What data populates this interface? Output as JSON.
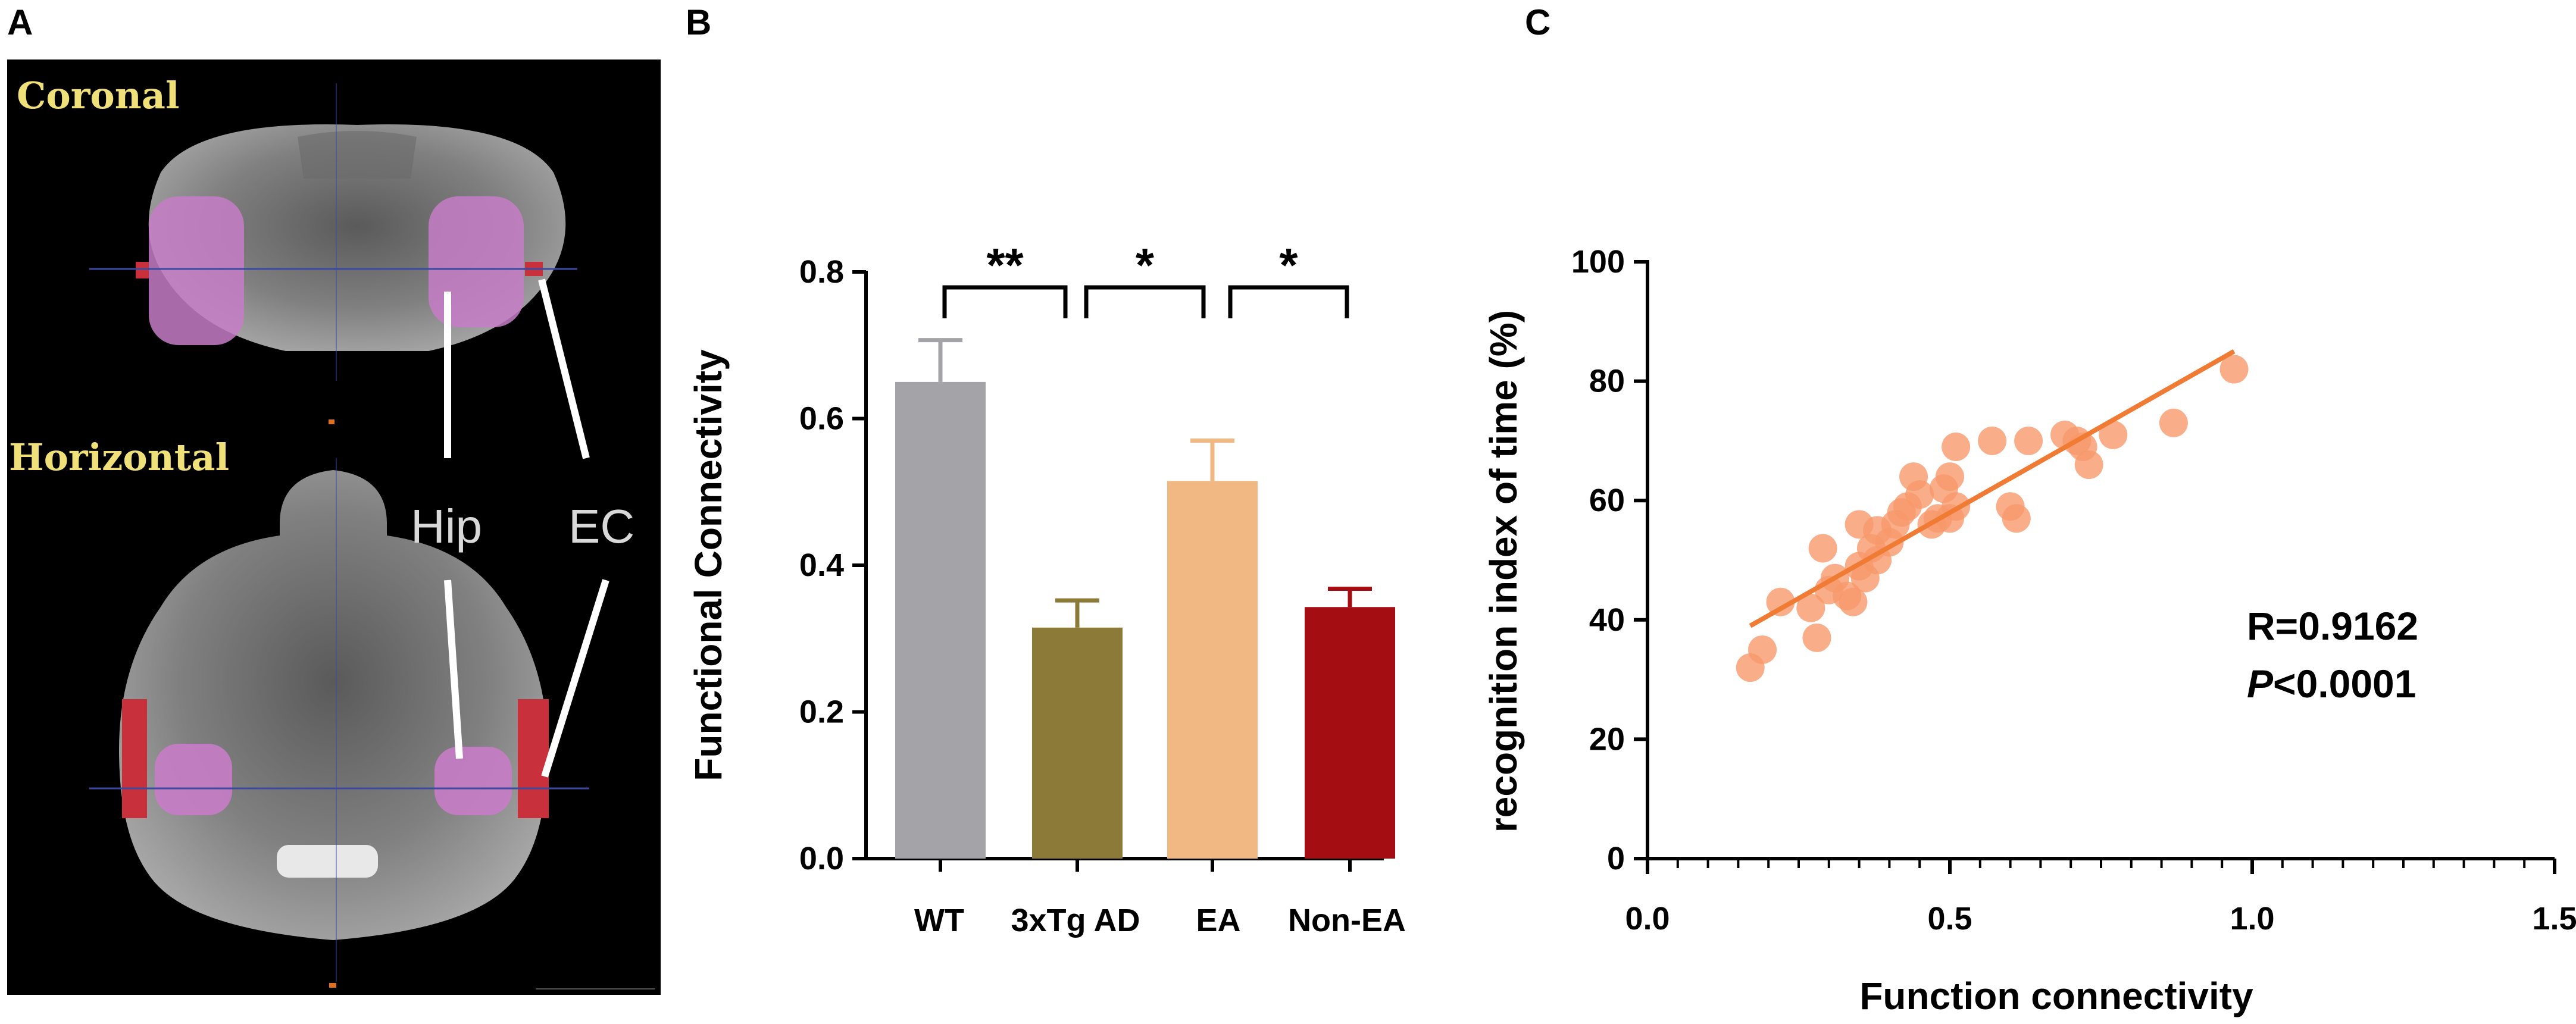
{
  "panels": {
    "a": {
      "label": "A",
      "views": {
        "coronal": "Coronal",
        "horizontal": "Horizontal"
      },
      "regions": {
        "hip": "Hip",
        "ec": "EC"
      },
      "colors": {
        "hip_roi": "#c77dc7",
        "ec_roi": "#c8303c",
        "view_label": "#f0e07a",
        "roi_text": "#d8d8d8"
      }
    },
    "b": {
      "label": "B"
    },
    "c": {
      "label": "C"
    }
  },
  "chart_data": [
    {
      "type": "bar",
      "ylabel": "Functional Connectivity",
      "ylim": [
        0,
        0.8
      ],
      "yticks": [
        "0.0",
        "0.2",
        "0.4",
        "0.6",
        "0.8"
      ],
      "categories": [
        "WT",
        "3xTg AD",
        "EA",
        "Non-EA"
      ],
      "values": [
        0.65,
        0.315,
        0.515,
        0.343
      ],
      "errors": [
        0.057,
        0.037,
        0.055,
        0.025
      ],
      "colors": [
        "#a3a3a8",
        "#8c7b38",
        "#f2b883",
        "#a40e12"
      ],
      "significance": [
        "**",
        "*",
        "*"
      ]
    },
    {
      "type": "scatter",
      "xlabel": "Function connectivity",
      "ylabel": "recognition index of time (%)",
      "xlim": [
        0,
        1.5
      ],
      "ylim": [
        0,
        100
      ],
      "xticks": [
        "0.0",
        "0.5",
        "1.0",
        "1.5"
      ],
      "yticks": [
        "0",
        "20",
        "40",
        "60",
        "80",
        "100"
      ],
      "point_color": "#f7996b",
      "line_color": "#f07b34",
      "fit_line": {
        "x": [
          0.17,
          0.97
        ],
        "y": [
          39,
          85
        ]
      },
      "x": [
        0.17,
        0.19,
        0.22,
        0.27,
        0.28,
        0.29,
        0.3,
        0.31,
        0.33,
        0.34,
        0.35,
        0.35,
        0.36,
        0.37,
        0.38,
        0.38,
        0.4,
        0.41,
        0.42,
        0.43,
        0.44,
        0.45,
        0.47,
        0.48,
        0.49,
        0.5,
        0.5,
        0.51,
        0.51,
        0.57,
        0.6,
        0.61,
        0.63,
        0.69,
        0.71,
        0.72,
        0.73,
        0.77,
        0.87,
        0.97
      ],
      "y": [
        32,
        35,
        43,
        42,
        37,
        52,
        45,
        47,
        44,
        43,
        49,
        56,
        47,
        52,
        50,
        55,
        53,
        56,
        58,
        59,
        64,
        61,
        56,
        57,
        62,
        57,
        64,
        69,
        59,
        70,
        59,
        57,
        70,
        71,
        70,
        69,
        66,
        71,
        73,
        82
      ],
      "annotations": {
        "r": "R=0.9162",
        "p_italic": "P",
        "p_rest": "<0.0001"
      }
    }
  ]
}
